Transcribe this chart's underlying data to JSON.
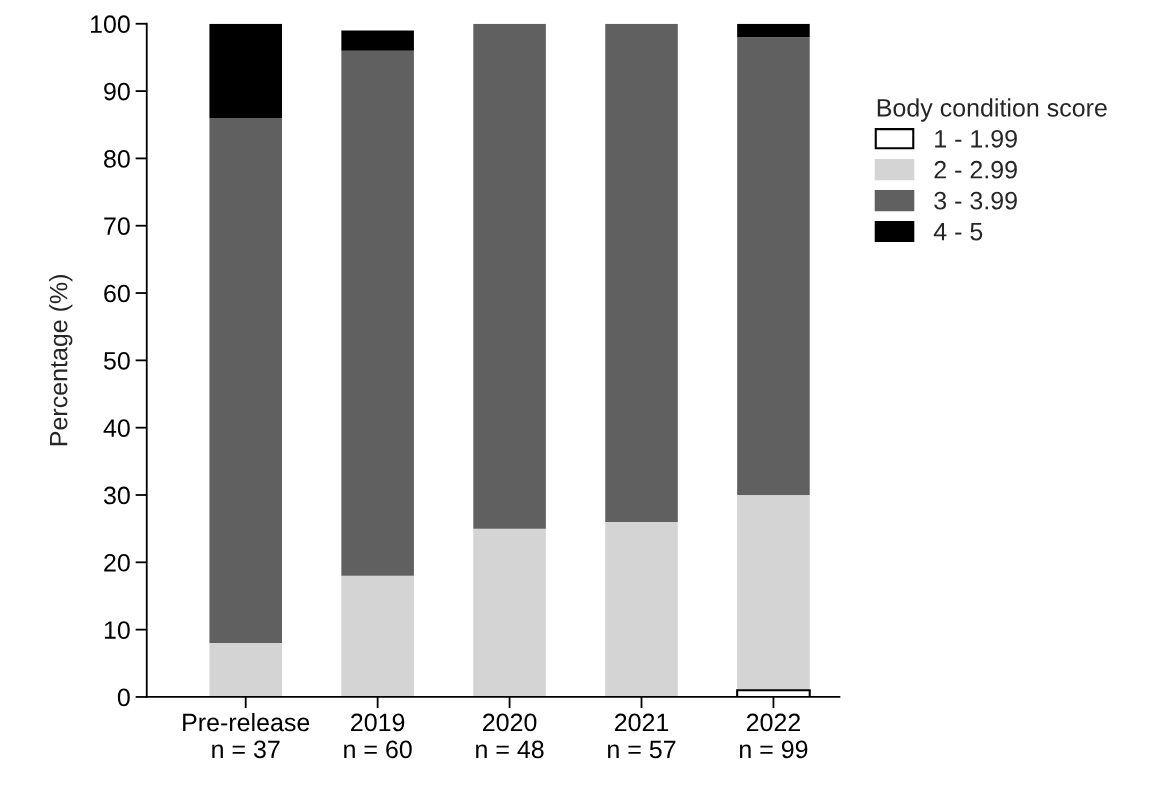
{
  "chart_data": {
    "type": "bar",
    "stacked": true,
    "ylabel": "Percentage (%)",
    "legend_title": "Body condition score",
    "legend": "right",
    "categories": [
      "Pre-release\nn = 37",
      "2019\nn = 60",
      "2020\nn = 48",
      "2021\nn = 57",
      "2022\nn = 99"
    ],
    "series": [
      {
        "name": "1 - 1.99",
        "color": "#ffffff",
        "values": [
          0,
          0,
          0,
          0,
          1
        ]
      },
      {
        "name": "2 - 2.99",
        "color": "#d4d4d4",
        "values": [
          8,
          18,
          25,
          26,
          29
        ]
      },
      {
        "name": "3 - 3.99",
        "color": "#606060",
        "values": [
          78,
          78,
          75,
          74,
          68
        ]
      },
      {
        "name": "4 - 5",
        "color": "#000000",
        "values": [
          14,
          3,
          0,
          0,
          2
        ]
      }
    ],
    "ylim": [
      0,
      100
    ],
    "yticks": [
      0,
      10,
      20,
      30,
      40,
      50,
      60,
      70,
      80,
      90,
      100
    ],
    "grid": false
  }
}
